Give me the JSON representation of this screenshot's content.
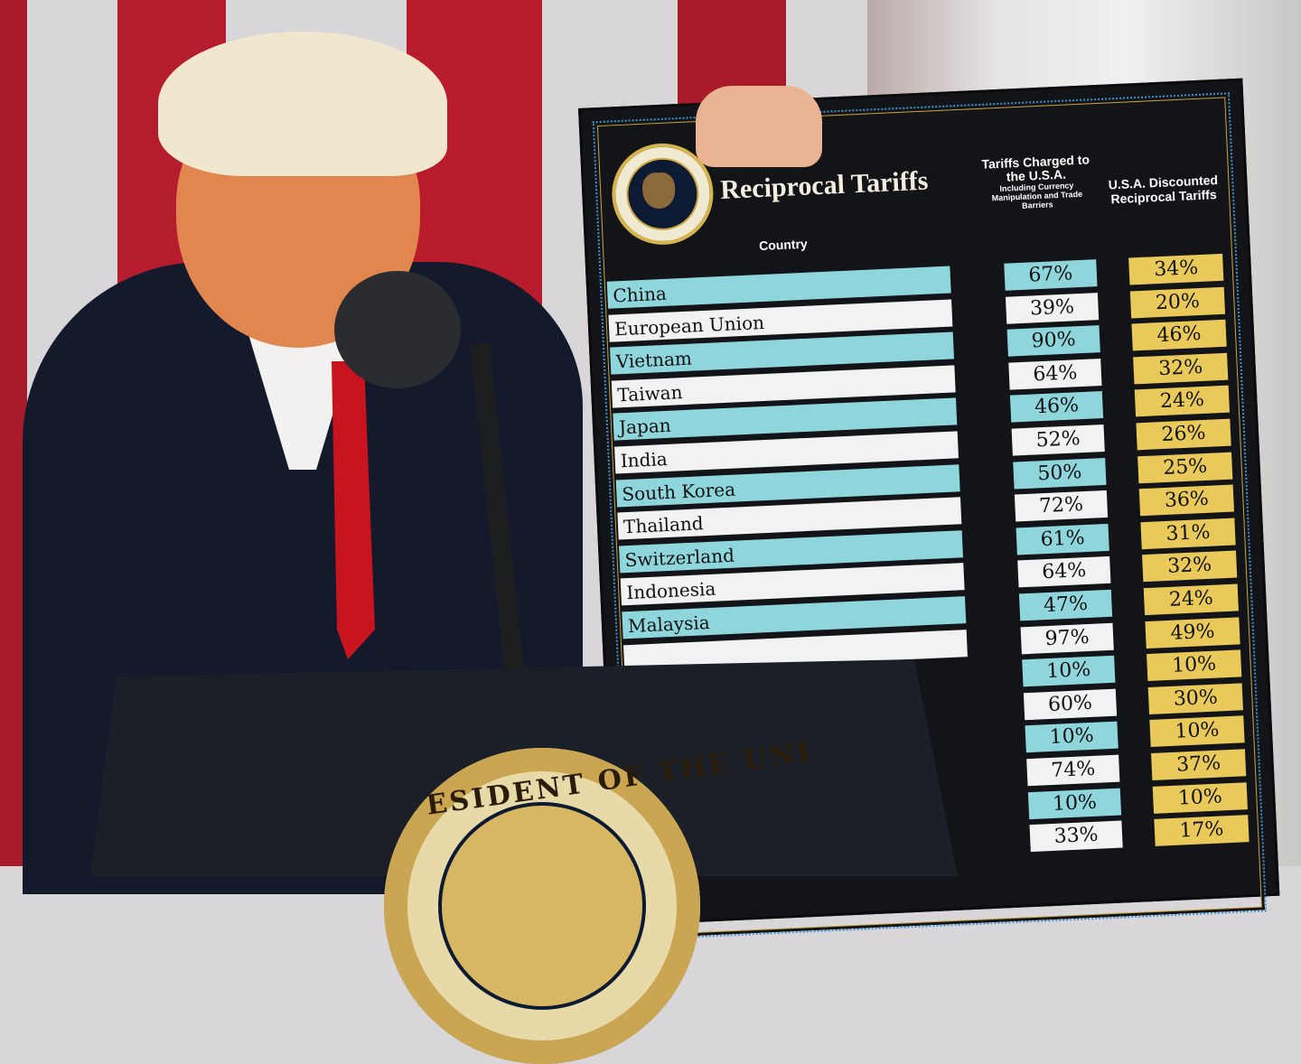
{
  "board": {
    "title": "Reciprocal Tariffs",
    "header_country": "Country",
    "header_charged": "Tariffs Charged to the U.S.A.",
    "header_charged_sub": "Including Currency Manipulation and Trade Barriers",
    "header_discounted": "U.S.A. Discounted Reciprocal Tariffs",
    "seal_text": "SEAL OF THE PRESIDENT OF THE UNITED STATES",
    "rows": [
      {
        "country": "China",
        "charged": "67%",
        "discounted": "34%"
      },
      {
        "country": "European Union",
        "charged": "39%",
        "discounted": "20%"
      },
      {
        "country": "Vietnam",
        "charged": "90%",
        "discounted": "46%"
      },
      {
        "country": "Taiwan",
        "charged": "64%",
        "discounted": "32%"
      },
      {
        "country": "Japan",
        "charged": "46%",
        "discounted": "24%"
      },
      {
        "country": "India",
        "charged": "52%",
        "discounted": "26%"
      },
      {
        "country": "South Korea",
        "charged": "50%",
        "discounted": "25%"
      },
      {
        "country": "Thailand",
        "charged": "72%",
        "discounted": "36%"
      },
      {
        "country": "Switzerland",
        "charged": "61%",
        "discounted": "31%"
      },
      {
        "country": "Indonesia",
        "charged": "64%",
        "discounted": "32%"
      },
      {
        "country": "Malaysia",
        "charged": "47%",
        "discounted": "24%"
      },
      {
        "country": "",
        "charged": "97%",
        "discounted": "49%"
      },
      {
        "country": "",
        "charged": "10%",
        "discounted": "10%"
      },
      {
        "country": "",
        "charged": "60%",
        "discounted": "30%"
      },
      {
        "country": "",
        "charged": "10%",
        "discounted": "10%"
      },
      {
        "country": "",
        "charged": "74%",
        "discounted": "37%"
      },
      {
        "country": "",
        "charged": "10%",
        "discounted": "10%"
      },
      {
        "country": "",
        "charged": "33%",
        "discounted": "17%"
      }
    ]
  },
  "podium": {
    "seal_text": "PRESIDENT OF THE UNITED STATES",
    "seal_visible": "ESIDENT OF THE UNI"
  },
  "colors": {
    "teal": "#8fd6dc",
    "gold": "#e8c95a",
    "board": "#121417",
    "flag_red": "#b81c2c"
  }
}
